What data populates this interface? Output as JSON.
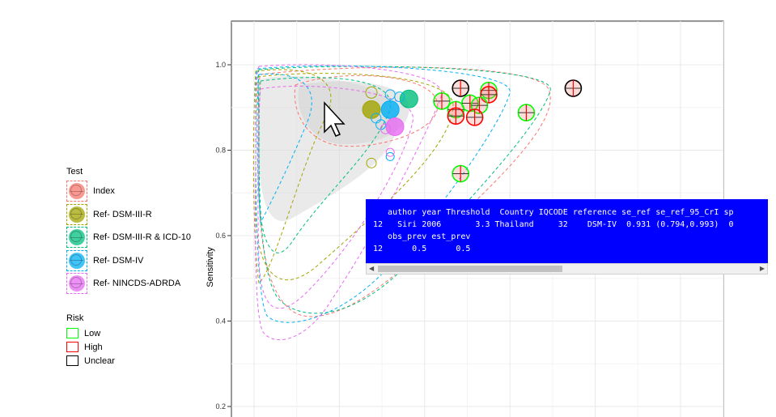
{
  "chart_data": {
    "type": "scatter",
    "ylabel": "Sensitivity",
    "xlabel": "",
    "ylim": [
      0.2,
      1.1
    ],
    "yticks": [
      "0.2",
      "0.4",
      "0.6",
      "0.8",
      "1.0"
    ],
    "grid": true,
    "legend_position": "left",
    "test_legend": {
      "title": "Test",
      "entries": [
        {
          "label": "Index",
          "color": "#f8766d"
        },
        {
          "label": "Ref- DSM-III-R",
          "color": "#a3a500"
        },
        {
          "label": "Ref- DSM-III-R & ICD-10",
          "color": "#00bf7d"
        },
        {
          "label": "Ref- DSM-IV",
          "color": "#00b0f6"
        },
        {
          "label": "Ref- NINCDS-ADRDA",
          "color": "#e76bf3"
        }
      ]
    },
    "risk_legend": {
      "title": "Risk",
      "entries": [
        {
          "label": "Low",
          "color": "#00ff00"
        },
        {
          "label": "High",
          "color": "#ff0000"
        },
        {
          "label": "Unclear",
          "color": "#000000"
        }
      ]
    },
    "index_points": [
      {
        "x": 0.44,
        "y": 0.945,
        "risk": "Unclear"
      },
      {
        "x": 0.68,
        "y": 0.945,
        "risk": "Unclear"
      },
      {
        "x": 0.5,
        "y": 0.94,
        "risk": "Low"
      },
      {
        "x": 0.4,
        "y": 0.915,
        "risk": "Low"
      },
      {
        "x": 0.5,
        "y": 0.93,
        "risk": "High"
      },
      {
        "x": 0.46,
        "y": 0.91,
        "risk": "Low"
      },
      {
        "x": 0.48,
        "y": 0.905,
        "risk": "Low"
      },
      {
        "x": 0.43,
        "y": 0.895,
        "risk": "Low"
      },
      {
        "x": 0.43,
        "y": 0.88,
        "risk": "High"
      },
      {
        "x": 0.47,
        "y": 0.877,
        "risk": "High"
      },
      {
        "x": 0.58,
        "y": 0.888,
        "risk": "Low"
      },
      {
        "x": 0.44,
        "y": 0.745,
        "risk": "Low"
      }
    ],
    "reference_points": [
      {
        "x": 0.25,
        "y": 0.895,
        "test": "Ref- DSM-III-R",
        "size": 11
      },
      {
        "x": 0.25,
        "y": 0.935,
        "test": "Ref- DSM-III-R",
        "size": 7
      },
      {
        "x": 0.33,
        "y": 0.92,
        "test": "Ref- DSM-III-R & ICD-10",
        "size": 11
      },
      {
        "x": 0.29,
        "y": 0.895,
        "test": "Ref- DSM-IV",
        "size": 11
      },
      {
        "x": 0.29,
        "y": 0.93,
        "test": "Ref- DSM-IV",
        "size": 6
      },
      {
        "x": 0.31,
        "y": 0.925,
        "test": "Ref- DSM-IV",
        "size": 6
      },
      {
        "x": 0.26,
        "y": 0.875,
        "test": "Ref- DSM-IV",
        "size": 6
      },
      {
        "x": 0.27,
        "y": 0.86,
        "test": "Ref- DSM-IV",
        "size": 6
      },
      {
        "x": 0.25,
        "y": 0.77,
        "test": "Ref- DSM-III-R",
        "size": 6
      },
      {
        "x": 0.29,
        "y": 0.785,
        "test": "Ref- DSM-IV",
        "size": 5
      },
      {
        "x": 0.29,
        "y": 0.795,
        "test": "Ref- NINCDS-ADRDA",
        "size": 5
      },
      {
        "x": 0.28,
        "y": 0.85,
        "test": "Ref- NINCDS-ADRDA",
        "size": 6
      },
      {
        "x": 0.3,
        "y": 0.855,
        "test": "Ref- NINCDS-ADRDA",
        "size": 11
      }
    ]
  },
  "tooltip": {
    "line1": "   author year Threshold  Country IQCODE reference se_ref se_ref_95_CrI sp",
    "line2": "12   Siri 2006       3.3 Thailand     32    DSM-IV  0.931 (0.794,0.993)  0",
    "line3": "   obs_prev est_prev",
    "line4": "12      0.5      0.5",
    "bg_color": "#0000ff"
  }
}
